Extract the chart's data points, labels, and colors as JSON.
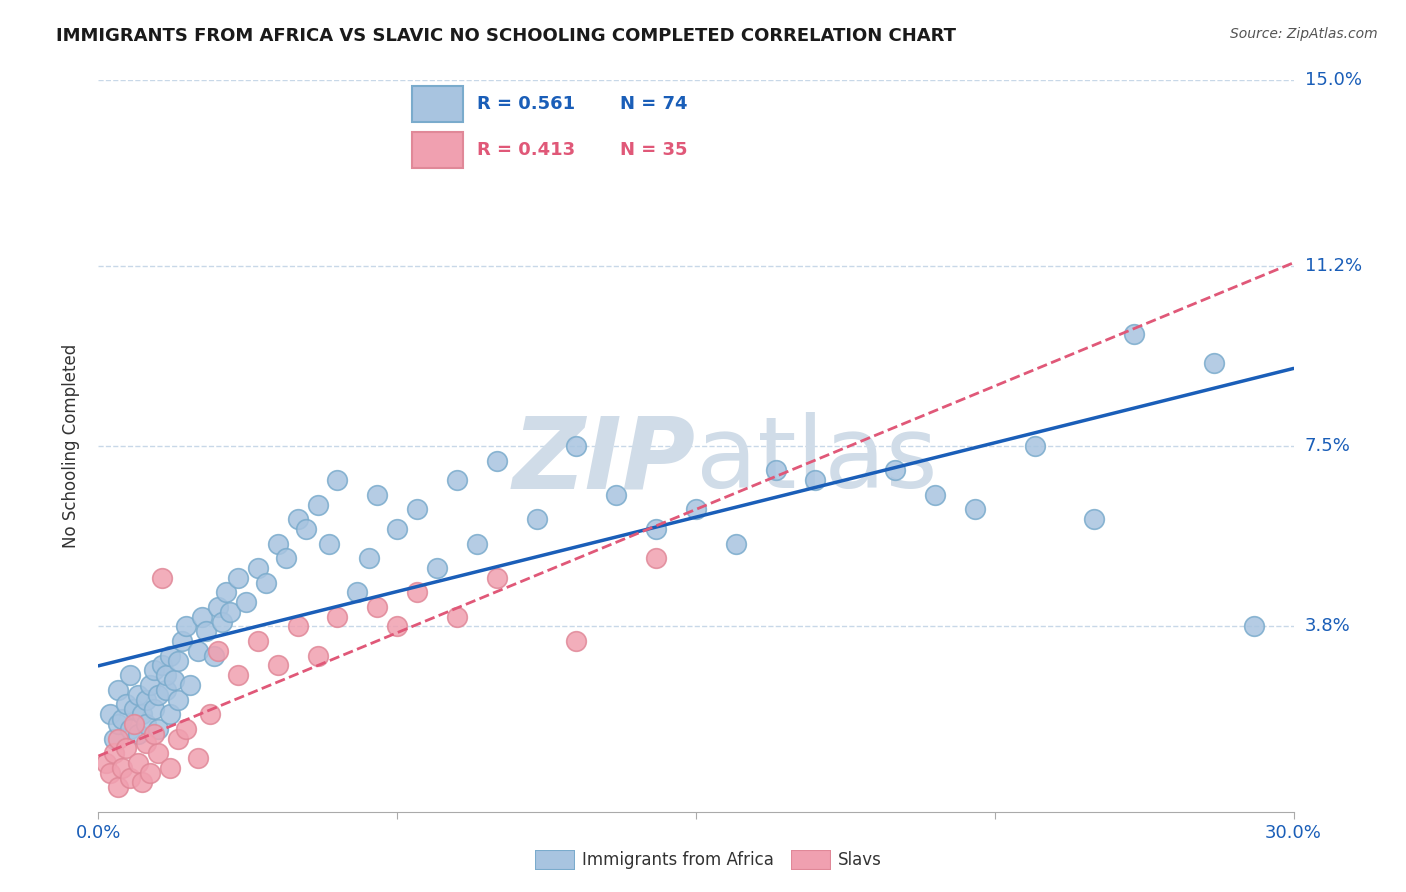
{
  "title": "IMMIGRANTS FROM AFRICA VS SLAVIC NO SCHOOLING COMPLETED CORRELATION CHART",
  "source": "Source: ZipAtlas.com",
  "ylabel": "No Schooling Completed",
  "xlim": [
    0,
    30
  ],
  "ylim": [
    0,
    15
  ],
  "yticks": [
    0,
    3.8,
    7.5,
    11.2,
    15.0
  ],
  "ytick_labels": [
    "",
    "3.8%",
    "7.5%",
    "11.2%",
    "15.0%"
  ],
  "xticks": [
    0,
    7.5,
    15,
    22.5,
    30
  ],
  "xtick_labels": [
    "0.0%",
    "",
    "",
    "",
    "30.0%"
  ],
  "africa_R": "0.561",
  "africa_N": "74",
  "slavs_R": "0.413",
  "slavs_N": "35",
  "africa_color": "#a8c4e0",
  "slavs_color": "#f0a0b0",
  "africa_line_color": "#1a5eb8",
  "slavs_line_color": "#e05878",
  "background_color": "#ffffff",
  "grid_color": "#c8d8e8",
  "watermark_color": "#d0dce8",
  "africa_scatter_x": [
    0.3,
    0.4,
    0.5,
    0.5,
    0.6,
    0.7,
    0.8,
    0.8,
    0.9,
    1.0,
    1.0,
    1.1,
    1.2,
    1.2,
    1.3,
    1.4,
    1.4,
    1.5,
    1.5,
    1.6,
    1.7,
    1.7,
    1.8,
    1.8,
    1.9,
    2.0,
    2.0,
    2.1,
    2.2,
    2.3,
    2.5,
    2.6,
    2.7,
    2.9,
    3.0,
    3.1,
    3.2,
    3.3,
    3.5,
    3.7,
    4.0,
    4.2,
    4.5,
    4.7,
    5.0,
    5.2,
    5.5,
    5.8,
    6.0,
    6.5,
    6.8,
    7.0,
    7.5,
    8.0,
    8.5,
    9.0,
    9.5,
    10.0,
    11.0,
    12.0,
    13.0,
    14.0,
    15.0,
    16.0,
    17.0,
    18.0,
    20.0,
    21.0,
    22.0,
    23.5,
    25.0,
    26.0,
    28.0,
    29.0
  ],
  "africa_scatter_y": [
    2.0,
    1.5,
    1.8,
    2.5,
    1.9,
    2.2,
    1.7,
    2.8,
    2.1,
    1.6,
    2.4,
    2.0,
    2.3,
    1.8,
    2.6,
    2.1,
    2.9,
    2.4,
    1.7,
    3.0,
    2.5,
    2.8,
    3.2,
    2.0,
    2.7,
    3.1,
    2.3,
    3.5,
    3.8,
    2.6,
    3.3,
    4.0,
    3.7,
    3.2,
    4.2,
    3.9,
    4.5,
    4.1,
    4.8,
    4.3,
    5.0,
    4.7,
    5.5,
    5.2,
    6.0,
    5.8,
    6.3,
    5.5,
    6.8,
    4.5,
    5.2,
    6.5,
    5.8,
    6.2,
    5.0,
    6.8,
    5.5,
    7.2,
    6.0,
    7.5,
    6.5,
    5.8,
    6.2,
    5.5,
    7.0,
    6.8,
    7.0,
    6.5,
    6.2,
    7.5,
    6.0,
    9.8,
    9.2,
    3.8
  ],
  "slavs_scatter_x": [
    0.2,
    0.3,
    0.4,
    0.5,
    0.5,
    0.6,
    0.7,
    0.8,
    0.9,
    1.0,
    1.1,
    1.2,
    1.3,
    1.5,
    1.6,
    1.8,
    2.0,
    2.2,
    2.5,
    2.8,
    3.0,
    3.5,
    4.0,
    4.5,
    5.0,
    5.5,
    6.0,
    7.0,
    7.5,
    8.0,
    9.0,
    10.0,
    12.0,
    14.0,
    1.4
  ],
  "slavs_scatter_y": [
    1.0,
    0.8,
    1.2,
    0.5,
    1.5,
    0.9,
    1.3,
    0.7,
    1.8,
    1.0,
    0.6,
    1.4,
    0.8,
    1.2,
    4.8,
    0.9,
    1.5,
    1.7,
    1.1,
    2.0,
    3.3,
    2.8,
    3.5,
    3.0,
    3.8,
    3.2,
    4.0,
    4.2,
    3.8,
    4.5,
    4.0,
    4.8,
    3.5,
    5.2,
    1.6
  ],
  "legend_africa_label": "Immigrants from Africa",
  "legend_slavs_label": "Slavs"
}
